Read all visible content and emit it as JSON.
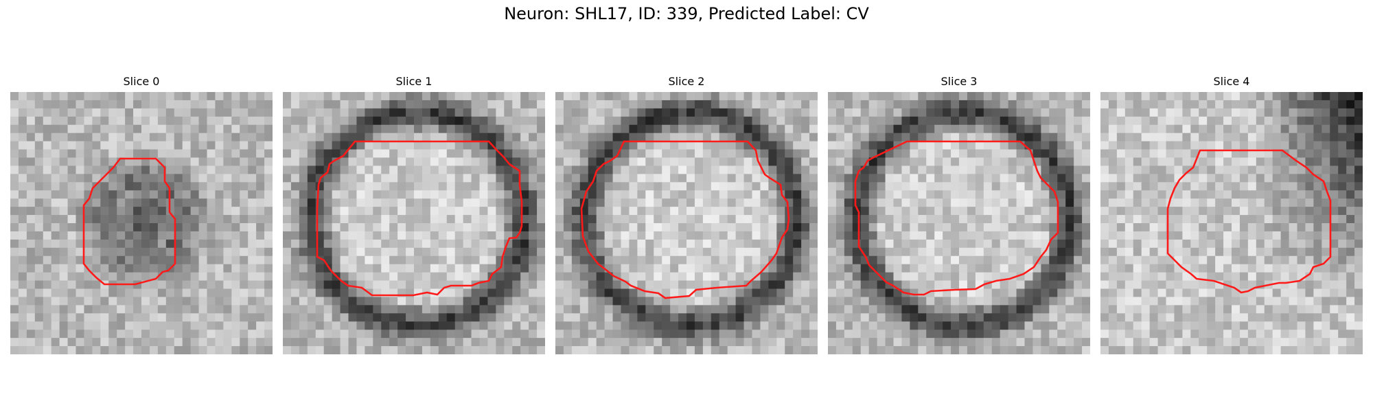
{
  "figure": {
    "title": "Neuron: SHL17, ID: 339, Predicted Label: CV"
  },
  "panels": [
    {
      "title": "Slice 0",
      "seed": 17,
      "dark_ring": false,
      "blob": true,
      "darkness_right": 0.0
    },
    {
      "title": "Slice 1",
      "seed": 29,
      "dark_ring": true,
      "blob": false,
      "darkness_right": 0.0
    },
    {
      "title": "Slice 2",
      "seed": 41,
      "dark_ring": true,
      "blob": false,
      "darkness_right": 0.0
    },
    {
      "title": "Slice 3",
      "seed": 53,
      "dark_ring": true,
      "blob": false,
      "darkness_right": 0.0
    },
    {
      "title": "Slice 4",
      "seed": 67,
      "dark_ring": false,
      "blob": false,
      "darkness_right": 0.85
    }
  ],
  "colors": {
    "contour": "#ff1a1a"
  }
}
